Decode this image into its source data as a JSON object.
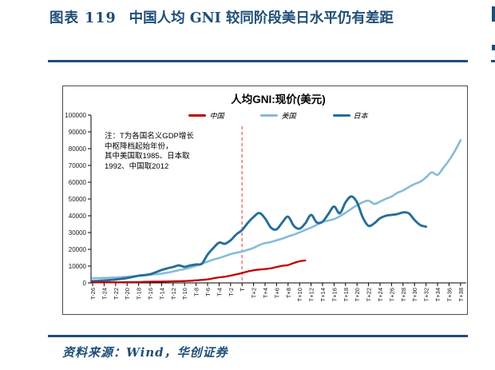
{
  "page": {
    "figure_label": "图表 119",
    "figure_title": "中国人均 GNI 较同阶段美日水平仍有差距",
    "source_note": "资料来源：Wind，华创证券",
    "accent_color": "#1F4E79"
  },
  "chart_data": {
    "type": "line",
    "title": "人均GNI:现价(美元)",
    "note_lines": [
      "注：T为各国名义GDP增长",
      "中枢降档起始年份，",
      "其中美国取1985、日本取",
      "1992、中国取2012"
    ],
    "legend_position": "top",
    "grid": false,
    "x_axis": {
      "min": -26,
      "max": 38,
      "tick_step": 2,
      "tick_labels": [
        "T-26",
        "T-24",
        "T-22",
        "T-20",
        "T-18",
        "T-16",
        "T-14",
        "T-12",
        "T-10",
        "T-8",
        "T-6",
        "T-4",
        "T-2",
        "T",
        "T+2",
        "T+4",
        "T+6",
        "T+8",
        "T+10",
        "T+12",
        "T+14",
        "T+16",
        "T+18",
        "T+20",
        "T+22",
        "T+24",
        "T+26",
        "T+28",
        "T+30",
        "T+32",
        "T+34",
        "T+36",
        "T+38"
      ]
    },
    "y_axis": {
      "min": 0,
      "max": 100000,
      "tick_step": 10000,
      "tick_labels": [
        "0",
        "10000",
        "20000",
        "30000",
        "40000",
        "50000",
        "60000",
        "70000",
        "80000",
        "90000",
        "100000"
      ]
    },
    "reference_line": {
      "x_label": "T",
      "x": 0,
      "color": "#F07F7F",
      "style": "dashed"
    },
    "series": [
      {
        "name": "中国",
        "color": "#C00000",
        "start": -26,
        "values": [
          280,
          300,
          330,
          350,
          330,
          360,
          390,
          410,
          470,
          600,
          700,
          780,
          820,
          870,
          940,
          1010,
          1110,
          1290,
          1510,
          1770,
          2100,
          2710,
          3290,
          3690,
          4340,
          5110,
          5910,
          6800,
          7520,
          7940,
          8250,
          8690,
          9470,
          10170,
          10610,
          11880,
          12850,
          13400
        ]
      },
      {
        "name": "美国",
        "color": "#85BCD9",
        "start": -26,
        "values": [
          2800,
          2870,
          2960,
          3100,
          3240,
          3440,
          3660,
          3900,
          4170,
          4500,
          4830,
          5170,
          5540,
          6080,
          6790,
          7550,
          8290,
          9180,
          10250,
          11450,
          12660,
          13870,
          14810,
          15960,
          17120,
          17950,
          18700,
          19710,
          20870,
          22510,
          23670,
          24340,
          25380,
          26390,
          27690,
          28780,
          30060,
          31550,
          32950,
          34620,
          36330,
          37120,
          37990,
          39700,
          41780,
          44150,
          46310,
          48060,
          48980,
          47100,
          48470,
          50080,
          51430,
          53660,
          55050,
          57100,
          58900,
          60290,
          62850,
          65900,
          64310,
          68500,
          73000,
          78500,
          85000
        ]
      },
      {
        "name": "日本",
        "color": "#256D99",
        "start": -26,
        "values": [
          1080,
          1260,
          1450,
          1720,
          1990,
          2450,
          2920,
          3560,
          4300,
          4660,
          5200,
          6340,
          7680,
          8680,
          9460,
          10420,
          9570,
          10430,
          11000,
          11440,
          16880,
          20750,
          24000,
          23300,
          25350,
          28920,
          31490,
          35760,
          39300,
          41600,
          38440,
          33000,
          31900,
          36030,
          39500,
          34000,
          32290,
          35500,
          40500,
          36000,
          36500,
          41000,
          45500,
          41500,
          48000,
          51500,
          48000,
          39000,
          34000,
          35500,
          38500,
          40000,
          40500,
          41000,
          42000,
          41500,
          37500,
          34500,
          33500
        ]
      }
    ]
  }
}
